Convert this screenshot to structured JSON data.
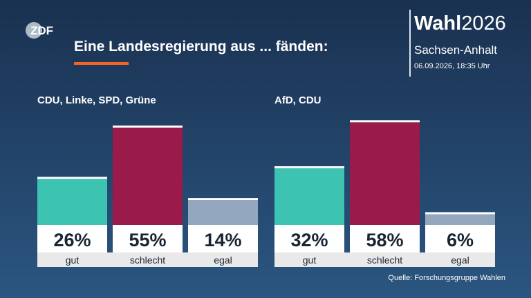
{
  "header": {
    "logo_text": "ZDF",
    "title": "Eine Landesregierung aus ... fänden:",
    "brand_title_bold": "Wahl",
    "brand_title_year": "2026",
    "brand_region": "Sachsen-Anhalt",
    "brand_date": "06.09.2026, 18:35 Uhr"
  },
  "footer": {
    "source": "Quelle: Forschungsgruppe Wahlen"
  },
  "colors": {
    "gut": "#3cc3b2",
    "schlecht": "#9a1a4a",
    "egal": "#93a7bf",
    "accent": "#f26522"
  },
  "chart_data": {
    "type": "bar",
    "ylim": [
      0,
      100
    ],
    "grid": false,
    "categories": [
      "gut",
      "schlecht",
      "egal"
    ],
    "groups": [
      {
        "name": "CDU, Linke, SPD, Grüne",
        "values": [
          26,
          55,
          14
        ],
        "labels": [
          "26%",
          "55%",
          "14%"
        ]
      },
      {
        "name": "AfD, CDU",
        "values": [
          32,
          58,
          6
        ],
        "labels": [
          "32%",
          "58%",
          "6%"
        ]
      }
    ]
  }
}
